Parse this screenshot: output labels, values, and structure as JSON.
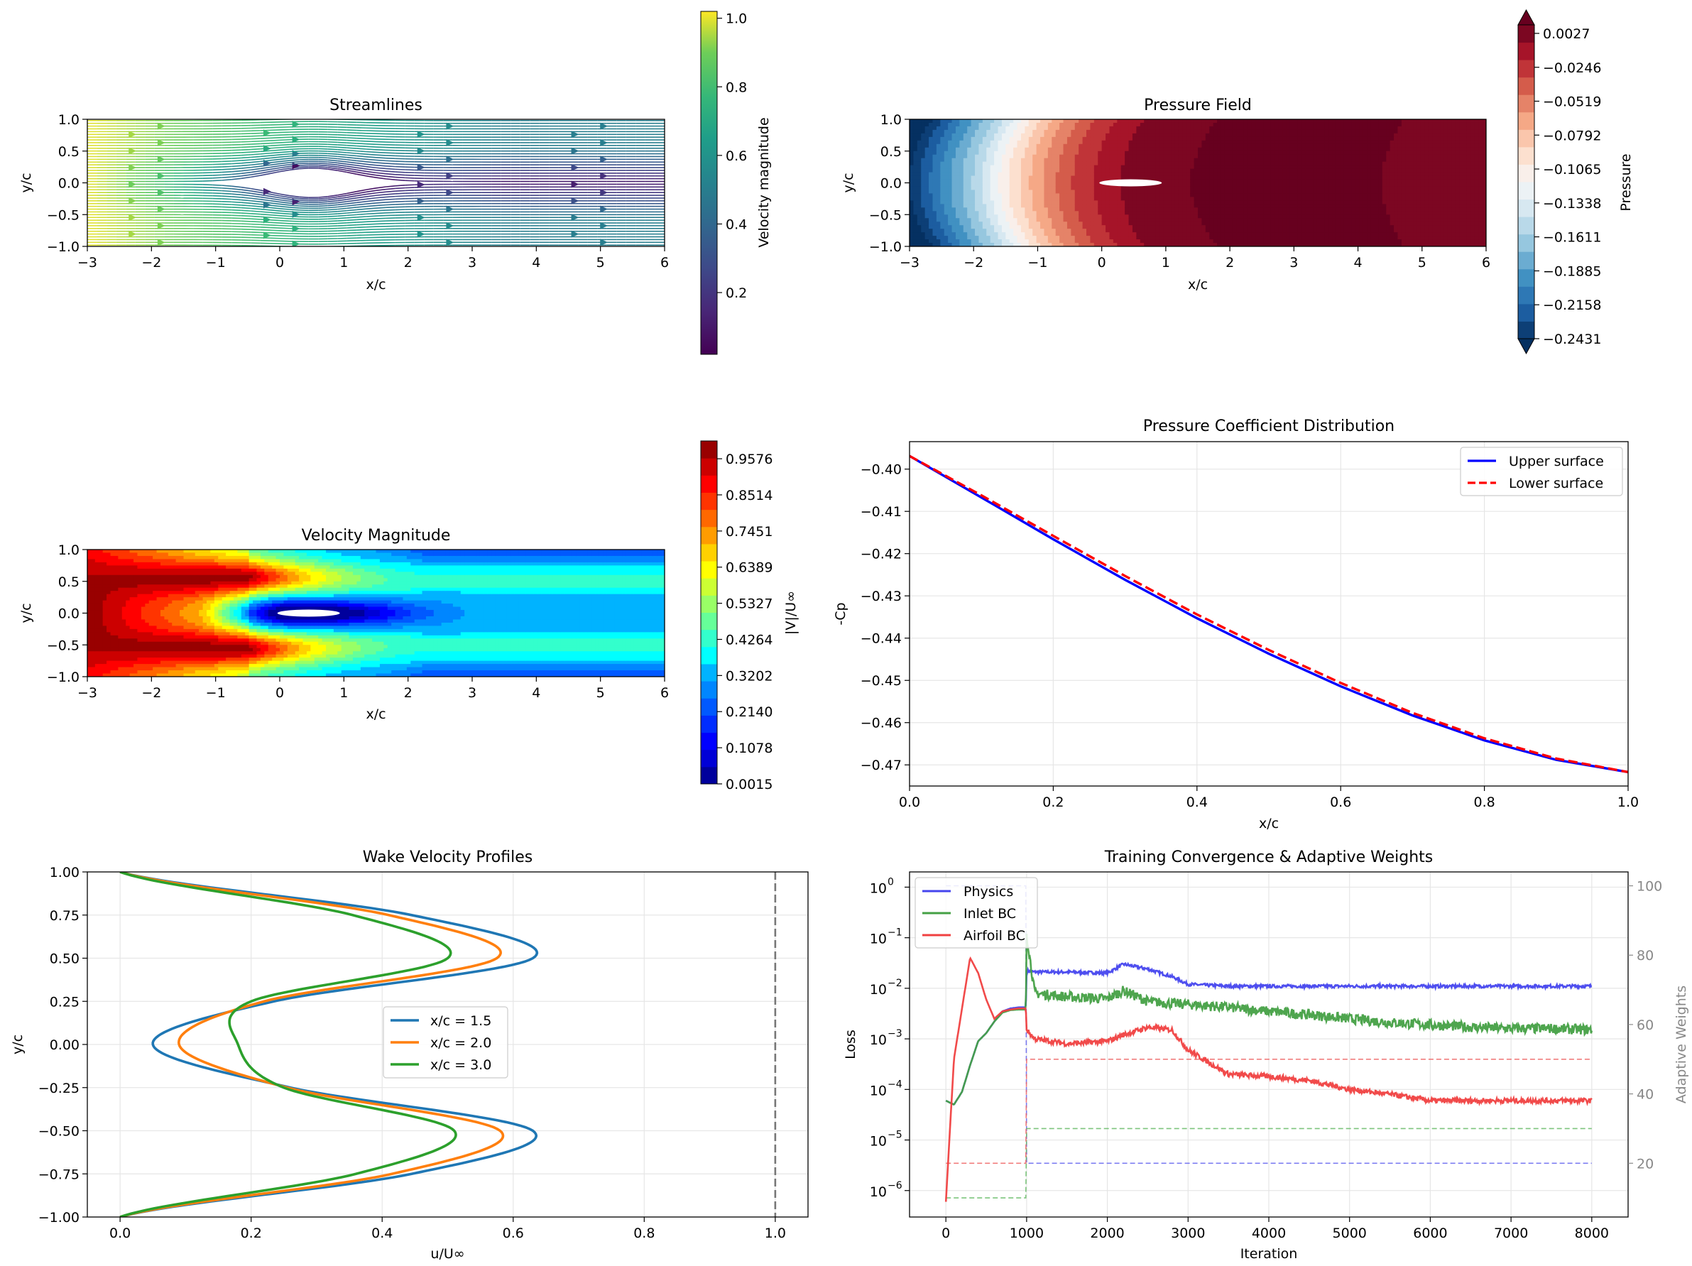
{
  "figure": {
    "streamlines": {
      "title": "Streamlines",
      "xlabel": "x/c",
      "ylabel": "y/c",
      "xticks": [
        "−3",
        "−2",
        "−1",
        "0",
        "1",
        "2",
        "3",
        "4",
        "5",
        "6"
      ],
      "yticks": [
        "1.0",
        "0.5",
        "0.0",
        "−0.5",
        "−1.0"
      ],
      "colorbar_label": "Velocity magnitude",
      "colorbar_ticks": [
        "1.0",
        "0.8",
        "0.6",
        "0.4",
        "0.2"
      ]
    },
    "pressure": {
      "title": "Pressure Field",
      "xlabel": "x/c",
      "ylabel": "y/c",
      "xticks": [
        "−3",
        "−2",
        "−1",
        "0",
        "1",
        "2",
        "3",
        "4",
        "5",
        "6"
      ],
      "yticks": [
        "1.0",
        "0.5",
        "0.0",
        "−0.5",
        "−1.0"
      ],
      "colorbar_label": "Pressure",
      "colorbar_ticks": [
        "0.0027",
        "−0.0246",
        "−0.0519",
        "−0.0792",
        "−0.1065",
        "−0.1338",
        "−0.1611",
        "−0.1885",
        "−0.2158",
        "−0.2431"
      ]
    },
    "velocity": {
      "title": "Velocity Magnitude",
      "xlabel": "x/c",
      "ylabel": "y/c",
      "xticks": [
        "−3",
        "−2",
        "−1",
        "0",
        "1",
        "2",
        "3",
        "4",
        "5",
        "6"
      ],
      "yticks": [
        "1.0",
        "0.5",
        "0.0",
        "−0.5",
        "−1.0"
      ],
      "colorbar_label": "|V|/U∞",
      "colorbar_ticks": [
        "0.9576",
        "0.8514",
        "0.7451",
        "0.6389",
        "0.5327",
        "0.4264",
        "0.3202",
        "0.2140",
        "0.1078",
        "0.0015"
      ]
    },
    "cp": {
      "title": "Pressure Coefficient Distribution",
      "xlabel": "x/c",
      "ylabel": "-Cp",
      "xticks": [
        "0.0",
        "0.2",
        "0.4",
        "0.6",
        "0.8",
        "1.0"
      ],
      "yticks": [
        "−0.40",
        "−0.41",
        "−0.42",
        "−0.43",
        "−0.44",
        "−0.45",
        "−0.46",
        "−0.47"
      ],
      "legend": [
        "Upper surface",
        "Lower surface"
      ]
    },
    "wake": {
      "title": "Wake Velocity Profiles",
      "xlabel": "u/U∞",
      "ylabel": "y/c",
      "xticks": [
        "0.0",
        "0.2",
        "0.4",
        "0.6",
        "0.8",
        "1.0"
      ],
      "yticks": [
        "1.00",
        "0.75",
        "0.50",
        "0.25",
        "0.00",
        "−0.25",
        "−0.50",
        "−0.75",
        "−1.00"
      ],
      "legend": [
        "x/c = 1.5",
        "x/c = 2.0",
        "x/c = 3.0"
      ]
    },
    "training": {
      "title": "Training Convergence & Adaptive Weights",
      "xlabel": "Iteration",
      "ylabel": "Loss",
      "ylabel2": "Adaptive Weights",
      "xticks": [
        "0",
        "1000",
        "2000",
        "3000",
        "4000",
        "5000",
        "6000",
        "7000",
        "8000"
      ],
      "yticks_base": [
        "10",
        "10",
        "10",
        "10",
        "10",
        "10",
        "10"
      ],
      "yticks_exp": [
        "0",
        "−1",
        "−2",
        "−3",
        "−4",
        "−5",
        "−6"
      ],
      "y2ticks": [
        "100",
        "80",
        "60",
        "40",
        "20"
      ],
      "legend": [
        "Physics",
        "Inlet BC",
        "Airfoil BC"
      ]
    }
  },
  "chart_data": [
    {
      "type": "streamplot",
      "title": "Streamlines",
      "xlabel": "x/c",
      "ylabel": "y/c",
      "xlim": [
        -3,
        6
      ],
      "ylim": [
        -1,
        1
      ],
      "colorbar": {
        "label": "Velocity magnitude",
        "range": [
          0.02,
          1.02
        ],
        "colormap": "viridis"
      }
    },
    {
      "type": "contour",
      "title": "Pressure Field",
      "xlabel": "x/c",
      "ylabel": "y/c",
      "xlim": [
        -3,
        6
      ],
      "ylim": [
        -1,
        1
      ],
      "colorbar": {
        "label": "Pressure",
        "range": [
          -0.2431,
          0.0027
        ],
        "colormap": "RdBu_r",
        "extend": "both"
      },
      "x_profile": [
        -3,
        -2.5,
        -2,
        -1.5,
        -1,
        -0.5,
        0,
        0.5,
        1,
        1.5,
        2,
        3,
        4,
        4.7,
        5,
        5.5,
        6
      ],
      "p_profile": [
        -0.2431,
        -0.2,
        -0.16,
        -0.11,
        -0.07,
        -0.04,
        -0.02,
        -0.005,
        0.0,
        0.003,
        0.0035,
        0.0035,
        0.0035,
        0.002,
        -0.001,
        -0.002,
        -0.0025
      ]
    },
    {
      "type": "contour",
      "title": "Velocity Magnitude",
      "xlabel": "x/c",
      "ylabel": "y/c",
      "xlim": [
        -3,
        6
      ],
      "ylim": [
        -1,
        1
      ],
      "colorbar": {
        "label": "|V|/U∞",
        "range": [
          0.0015,
          1.01
        ],
        "colormap": "jet"
      }
    },
    {
      "type": "line",
      "title": "Pressure Coefficient Distribution",
      "xlabel": "x/c",
      "ylabel": "-Cp",
      "xlim": [
        0,
        1
      ],
      "ylim": [
        -0.475,
        -0.3935
      ],
      "grid": true,
      "legend_position": "upper right",
      "x": [
        0,
        0.1,
        0.2,
        0.3,
        0.4,
        0.5,
        0.6,
        0.7,
        0.8,
        0.9,
        1.0
      ],
      "series": [
        {
          "name": "Upper surface",
          "color": "#0000ff",
          "style": "solid",
          "values": [
            -0.3969,
            -0.4067,
            -0.4166,
            -0.4262,
            -0.4353,
            -0.4437,
            -0.4514,
            -0.4583,
            -0.4642,
            -0.4688,
            -0.4717
          ]
        },
        {
          "name": "Lower surface",
          "color": "#ff0000",
          "style": "dashed",
          "values": [
            -0.3969,
            -0.4062,
            -0.4158,
            -0.4253,
            -0.4344,
            -0.4428,
            -0.4506,
            -0.4577,
            -0.4637,
            -0.4685,
            -0.4717
          ]
        }
      ]
    },
    {
      "type": "line",
      "title": "Wake Velocity Profiles",
      "xlabel": "u/U∞",
      "ylabel": "y/c",
      "xlim": [
        -0.05,
        1.05
      ],
      "ylim": [
        -1,
        1
      ],
      "grid": true,
      "legend_position": "center",
      "reference_line": {
        "x": 1.0,
        "style": "dashed",
        "color": "#777777"
      },
      "y": [
        1.0,
        0.75,
        0.5,
        0.25,
        0.0,
        -0.25,
        -0.5,
        -0.75,
        -1.0
      ],
      "series": [
        {
          "name": "x/c = 1.5",
          "color": "#1f77b4",
          "values": [
            0.0,
            0.445,
            0.63,
            0.235,
            0.05,
            0.26,
            0.63,
            0.445,
            0.0
          ]
        },
        {
          "name": "x/c = 2.0",
          "color": "#ff7f0e",
          "values": [
            0.0,
            0.41,
            0.575,
            0.22,
            0.09,
            0.255,
            0.58,
            0.415,
            0.0
          ]
        },
        {
          "name": "x/c = 3.0",
          "color": "#2ca02c",
          "values": [
            0.0,
            0.355,
            0.5,
            0.2,
            0.18,
            0.25,
            0.51,
            0.36,
            0.0
          ]
        }
      ]
    },
    {
      "type": "line",
      "title": "Training Convergence & Adaptive Weights",
      "xlabel": "Iteration",
      "ylabel": "Loss",
      "ylabel2": "Adaptive Weights",
      "xlim": [
        -450,
        8450
      ],
      "yscale": "log",
      "ylim": [
        3e-07,
        2
      ],
      "y2lim": [
        4.5,
        104
      ],
      "grid": true,
      "legend_position": "upper left",
      "x": [
        0,
        100,
        200,
        300,
        400,
        500,
        600,
        700,
        800,
        900,
        990,
        1000,
        1100,
        1500,
        2000,
        2200,
        2500,
        2800,
        3000,
        3500,
        4000,
        4500,
        5000,
        5500,
        6000,
        6500,
        7000,
        7500,
        8000
      ],
      "series": [
        {
          "name": "Physics",
          "color": "#4444ee",
          "axis": "left",
          "values": [
            6e-05,
            5e-05,
            9e-05,
            0.0003,
            0.0009,
            0.0013,
            0.0022,
            0.0035,
            0.004,
            0.0042,
            0.0042,
            0.022,
            0.021,
            0.021,
            0.02,
            0.03,
            0.024,
            0.017,
            0.012,
            0.011,
            0.011,
            0.011,
            0.011,
            0.011,
            0.011,
            0.011,
            0.011,
            0.011,
            0.011
          ]
        },
        {
          "name": "Inlet BC",
          "color": "#44a044",
          "axis": "left",
          "values": [
            6e-05,
            5e-05,
            9e-05,
            0.0003,
            0.0009,
            0.0013,
            0.0022,
            0.0033,
            0.0037,
            0.0038,
            0.0038,
            0.12,
            0.008,
            0.0068,
            0.0062,
            0.009,
            0.0055,
            0.005,
            0.0048,
            0.0042,
            0.0035,
            0.003,
            0.0025,
            0.0021,
            0.0019,
            0.0017,
            0.0016,
            0.0016,
            0.0015
          ]
        },
        {
          "name": "Airfoil BC",
          "color": "#f04040",
          "axis": "left",
          "values": [
            6e-07,
            0.0004,
            0.004,
            0.04,
            0.02,
            0.006,
            0.0025,
            0.0035,
            0.0038,
            0.004,
            0.004,
            0.0015,
            0.001,
            0.0008,
            0.0009,
            0.0012,
            0.0017,
            0.0015,
            0.0006,
            0.0002,
            0.00018,
            0.00015,
            0.0001,
            8e-05,
            6e-05,
            6e-05,
            6e-05,
            6e-05,
            6e-05
          ]
        }
      ],
      "weights": [
        {
          "name": "Physics",
          "color": "#6666ee",
          "x": [
            0,
            990,
            1000,
            8000
          ],
          "values": [
            100,
            100,
            20,
            20
          ]
        },
        {
          "name": "Inlet BC",
          "color": "#66bb66",
          "x": [
            0,
            990,
            1000,
            8000
          ],
          "values": [
            10,
            10,
            30,
            30
          ]
        },
        {
          "name": "Airfoil BC",
          "color": "#ee6666",
          "x": [
            0,
            990,
            1000,
            8000
          ],
          "values": [
            20,
            20,
            50,
            50
          ]
        }
      ]
    }
  ]
}
